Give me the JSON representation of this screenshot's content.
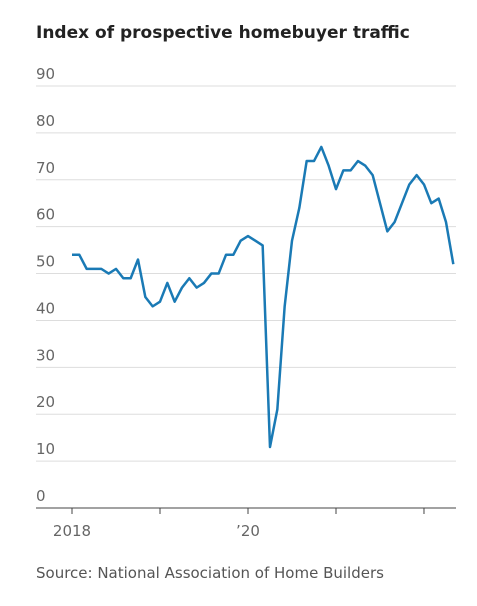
{
  "chart_data": {
    "type": "line",
    "title": "Index of prospective homebuyer traffic",
    "source": "Source: National Association of Home Builders",
    "categories": [
      "2018",
      null,
      null,
      null,
      null,
      null,
      null,
      null,
      null,
      null,
      null,
      null,
      null,
      null,
      null,
      null,
      null,
      null,
      null,
      null,
      null,
      null,
      null,
      null,
      "’20",
      null,
      null,
      null,
      null,
      null,
      null,
      null,
      null,
      null,
      null,
      null,
      null,
      null,
      null,
      null,
      null,
      null,
      null,
      null,
      null,
      null,
      null,
      null,
      null,
      null,
      null,
      null,
      null
    ],
    "series": [
      {
        "name": "Index",
        "color": "#1a7ab5",
        "values": [
          54,
          54,
          51,
          51,
          51,
          50,
          51,
          49,
          49,
          53,
          45,
          43,
          44,
          48,
          44,
          47,
          49,
          47,
          48,
          50,
          50,
          54,
          54,
          57,
          58,
          57,
          56,
          13,
          21,
          43,
          57,
          64,
          74,
          74,
          77,
          73,
          68,
          72,
          72,
          74,
          73,
          71,
          65,
          59,
          61,
          65,
          69,
          71,
          69,
          65,
          66,
          61,
          52
        ]
      }
    ],
    "ylim": [
      0,
      90
    ],
    "yticks": [
      0,
      10,
      20,
      30,
      40,
      50,
      60,
      70,
      80,
      90
    ],
    "grid": true
  }
}
